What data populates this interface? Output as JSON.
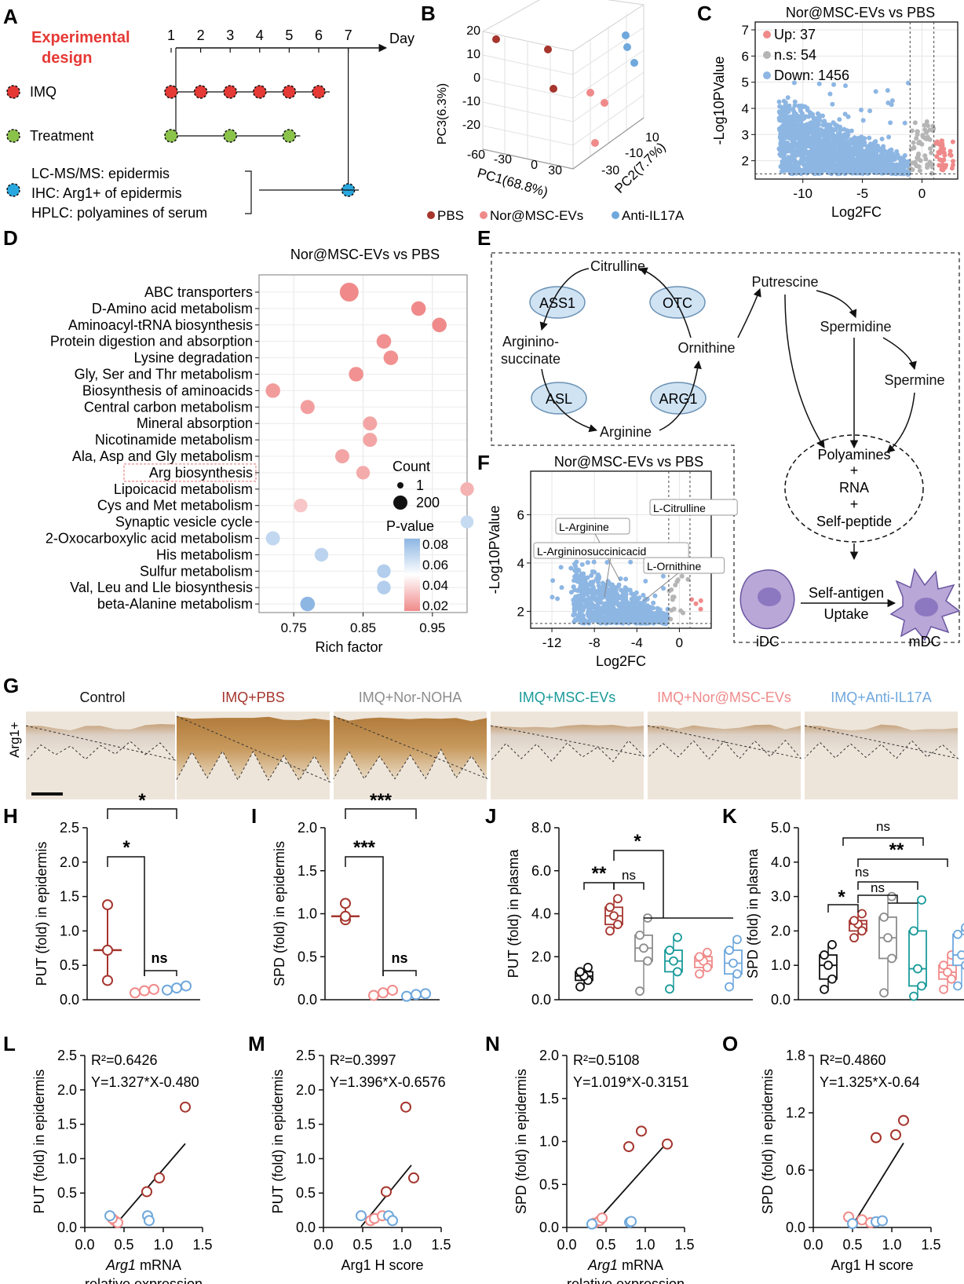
{
  "figure": {
    "panel_letters": [
      "A",
      "B",
      "C",
      "D",
      "E",
      "F",
      "G",
      "H",
      "I",
      "J",
      "K",
      "L",
      "M",
      "N",
      "O"
    ]
  },
  "panel_a": {
    "title_line1": "Experimental",
    "title_line2": "design",
    "day_label": "Day",
    "days": [
      "1",
      "2",
      "3",
      "4",
      "5",
      "6",
      "7"
    ],
    "rows": [
      {
        "label": "IMQ",
        "color": "#e53935",
        "days": [
          1,
          2,
          3,
          4,
          5,
          6
        ]
      },
      {
        "label": "Treatment",
        "color": "#8bc34a",
        "days": [
          1,
          3,
          5
        ]
      }
    ],
    "analysis_lines": [
      "LC-MS/MS: epidermis",
      "IHC: Arg1+ of epidermis",
      "HPLC: polyamines of serum"
    ],
    "analysis_color": "#29a8e0",
    "analysis_day": 7
  },
  "panel_b": {
    "xlabel": "PC1(68.8%)",
    "ylabel": "PC3(6.3%)",
    "zlabel": "PC2(7.7%)",
    "x_ticks": [
      "-60",
      "-30",
      "0",
      "30"
    ],
    "z_ticks": [
      "10",
      "-10",
      "-30"
    ],
    "y_ticks": [
      "20",
      "10",
      "0",
      "-10",
      "-20"
    ],
    "legend": [
      {
        "name": "PBS",
        "color": "#a5352d"
      },
      {
        "name": "Nor@MSC-EVs",
        "color": "#f08a8a"
      },
      {
        "name": "Anti-IL17A",
        "color": "#6fa8dc"
      }
    ]
  },
  "chart_data": [
    {
      "id": "C",
      "type": "scatter",
      "title": "Nor@MSC-EVs vs PBS",
      "xlabel": "Log2FC",
      "ylabel": "-Log10PValue",
      "xlim": [
        -14,
        3
      ],
      "ylim": [
        1.3,
        7.3
      ],
      "x_ticks": [
        -10,
        -5,
        0
      ],
      "y_ticks": [
        2,
        3,
        4,
        5,
        6,
        7
      ],
      "legend": [
        {
          "name": "Up: 37",
          "color": "#f08a8a"
        },
        {
          "name": "n.s: 54",
          "color": "#b5b5b5"
        },
        {
          "name": "Down: 1456",
          "color": "#8db6e3"
        }
      ]
    },
    {
      "id": "D",
      "type": "scatter",
      "title": "Nor@MSC-EVs vs PBS",
      "xlabel": "Rich factor",
      "x_ticks": [
        "0.75",
        "0.85",
        "0.95"
      ],
      "xlim": [
        0.7,
        1.0
      ],
      "categories": [
        "ABC transporters",
        "D-Amino acid metabolism",
        "Aminoacyl-tRNA biosynthesis",
        "Protein digestion and absorption",
        "Lysine degradation",
        "Gly, Ser and Thr metabolism",
        "Biosynthesis of aminoacids",
        "Central carbon metabolism",
        "Mineral absorption",
        "Nicotinamide metabolism",
        "Ala, Asp and Gly metabolism",
        "Arg biosynthesis",
        "Lipoicacid metabolism",
        "Cys and Met metabolism",
        "Synaptic vesicle cycle",
        "2-Oxocarboxylic acid metabolism",
        "His metabolism",
        "Sulfur metabolism",
        "Val, Leu and Lle biosynthesis",
        "beta-Alanine metabolism"
      ],
      "rich_factor": [
        0.83,
        0.93,
        0.96,
        0.88,
        0.89,
        0.84,
        0.72,
        0.77,
        0.86,
        0.86,
        0.82,
        0.85,
        1.0,
        0.76,
        1.0,
        0.72,
        0.79,
        0.88,
        0.88,
        0.77
      ],
      "p_value": [
        0.02,
        0.02,
        0.02,
        0.022,
        0.022,
        0.022,
        0.025,
        0.026,
        0.028,
        0.028,
        0.028,
        0.03,
        0.032,
        0.038,
        0.065,
        0.066,
        0.068,
        0.07,
        0.07,
        0.08
      ],
      "count": [
        200,
        60,
        60,
        60,
        60,
        60,
        60,
        50,
        50,
        50,
        50,
        40,
        40,
        40,
        30,
        50,
        40,
        40,
        40,
        60
      ],
      "highlighted_category": "Arg biosynthesis",
      "legend_count_title": "Count",
      "legend_count": [
        "1",
        "200"
      ],
      "legend_p_title": "P-value",
      "legend_p_ticks": [
        "0.08",
        "0.06",
        "0.04",
        "0.02"
      ]
    },
    {
      "id": "F",
      "type": "scatter",
      "title": "Nor@MSC-EVs vs PBS",
      "xlabel": "Log2FC",
      "ylabel": "-Log10PValue",
      "xlim": [
        -14,
        3
      ],
      "ylim": [
        1.3,
        7.8
      ],
      "x_ticks": [
        -12,
        -8,
        -4,
        0
      ],
      "y_ticks": [
        2,
        4,
        6
      ],
      "annotations": [
        "L-Citrulline",
        "L-Arginine",
        "L-Argininosuccinicacid",
        "L-Ornithine"
      ]
    },
    {
      "id": "H",
      "type": "scatter",
      "ylabel": "PUT (fold) in epidermis",
      "ylim": [
        0,
        2.5
      ],
      "y_ticks": [
        "0.0",
        "0.5",
        "1.0",
        "1.5",
        "2.0",
        "2.5"
      ],
      "groups": [
        {
          "color": "#a5352d",
          "values": [
            1.38,
            0.72,
            0.28
          ],
          "median": 0.72
        },
        {
          "color": "#f08a8a",
          "values": [
            0.1,
            0.13,
            0.15
          ],
          "median": 0.13
        },
        {
          "color": "#6fa8dc",
          "values": [
            0.14,
            0.17,
            0.2
          ],
          "median": 0.17
        }
      ],
      "significance": [
        "*",
        "*",
        "ns"
      ]
    },
    {
      "id": "I",
      "type": "scatter",
      "ylabel": "SPD (fold) in epidermis",
      "ylim": [
        0,
        2.0
      ],
      "y_ticks": [
        "0.0",
        "0.5",
        "1.0",
        "1.5",
        "2.0"
      ],
      "groups": [
        {
          "color": "#a5352d",
          "values": [
            1.12,
            0.93,
            0.97
          ],
          "median": 0.97
        },
        {
          "color": "#f08a8a",
          "values": [
            0.05,
            0.08,
            0.11
          ],
          "median": 0.08
        },
        {
          "color": "#6fa8dc",
          "values": [
            0.04,
            0.06,
            0.07
          ],
          "median": 0.06
        }
      ],
      "significance": [
        "***",
        "***",
        "ns"
      ]
    },
    {
      "id": "J",
      "type": "box",
      "ylabel": "PUT (fold) in plasma",
      "ylim": [
        0,
        8.0
      ],
      "y_ticks": [
        "0.0",
        "2.0",
        "4.0",
        "6.0",
        "8.0"
      ],
      "groups": [
        {
          "color": "#111111",
          "values": [
            0.6,
            0.9,
            1.1,
            1.3,
            1.5
          ]
        },
        {
          "color": "#a5352d",
          "values": [
            3.2,
            3.5,
            3.9,
            4.3,
            4.7
          ]
        },
        {
          "color": "#8c8c8c",
          "values": [
            0.4,
            1.8,
            2.4,
            3.0,
            3.8
          ]
        },
        {
          "color": "#1a9a9a",
          "values": [
            0.5,
            1.3,
            1.8,
            2.3,
            2.9
          ]
        },
        {
          "color": "#f08a8a",
          "values": [
            1.2,
            1.5,
            1.8,
            2.0,
            2.2
          ]
        },
        {
          "color": "#6fa8dc",
          "values": [
            0.6,
            1.2,
            1.7,
            2.3,
            2.8
          ]
        }
      ],
      "significance": [
        "**",
        "ns",
        "*"
      ]
    },
    {
      "id": "K",
      "type": "box",
      "ylabel": "SPD (fold) in plasma",
      "ylim": [
        0,
        5.0
      ],
      "y_ticks": [
        "0.0",
        "1.0",
        "2.0",
        "3.0",
        "4.0",
        "5.0"
      ],
      "groups": [
        {
          "color": "#111111",
          "values": [
            0.3,
            0.6,
            1.0,
            1.3,
            1.6
          ]
        },
        {
          "color": "#a5352d",
          "values": [
            1.8,
            2.0,
            2.2,
            2.3,
            2.5
          ]
        },
        {
          "color": "#8c8c8c",
          "values": [
            0.2,
            1.2,
            1.8,
            2.4,
            3.0
          ]
        },
        {
          "color": "#1a9a9a",
          "values": [
            0.1,
            0.4,
            0.9,
            2.0,
            2.9
          ]
        },
        {
          "color": "#f08a8a",
          "values": [
            0.3,
            0.6,
            0.8,
            1.0,
            1.3
          ]
        },
        {
          "color": "#6fa8dc",
          "values": [
            0.4,
            1.0,
            1.3,
            1.9,
            2.1
          ]
        }
      ],
      "significance": [
        "*",
        "ns",
        "ns",
        "**",
        "ns"
      ]
    },
    {
      "id": "L",
      "type": "scatter",
      "ylabel": "PUT (fold) in epidermis",
      "xlabel_line1": "Arg1",
      "xlabel_line1_rest": " mRNA",
      "xlabel_line2": "relative expression",
      "xlim": [
        0,
        1.5
      ],
      "ylim": [
        0,
        2.5
      ],
      "x_ticks": [
        "0.0",
        "0.5",
        "1.0",
        "1.5"
      ],
      "y_ticks": [
        "0.0",
        "0.5",
        "1.0",
        "1.5",
        "2.0",
        "2.5"
      ],
      "r2": "R²=0.6426",
      "equation": "Y=1.327*X-0.480",
      "fit": {
        "slope": 1.327,
        "intercept": -0.48,
        "x_range": [
          0.36,
          1.28
        ]
      },
      "points": [
        {
          "x": 0.79,
          "y": 0.52,
          "g": 0
        },
        {
          "x": 0.95,
          "y": 0.72,
          "g": 0
        },
        {
          "x": 1.28,
          "y": 1.75,
          "g": 0
        },
        {
          "x": 0.38,
          "y": 0.1,
          "g": 1
        },
        {
          "x": 0.42,
          "y": 0.07,
          "g": 1
        },
        {
          "x": 0.35,
          "y": 0.13,
          "g": 1
        },
        {
          "x": 0.32,
          "y": 0.17,
          "g": 2
        },
        {
          "x": 0.8,
          "y": 0.17,
          "g": 2
        },
        {
          "x": 0.82,
          "y": 0.1,
          "g": 2
        }
      ]
    },
    {
      "id": "M",
      "type": "scatter",
      "ylabel": "PUT (fold) in epidermis",
      "xlabel": "Arg1 H score",
      "xlim": [
        0,
        1.5
      ],
      "ylim": [
        0,
        2.5
      ],
      "x_ticks": [
        "0.0",
        "0.5",
        "1.0",
        "1.5"
      ],
      "y_ticks": [
        "0.0",
        "0.5",
        "1.0",
        "1.5",
        "2.0",
        "2.5"
      ],
      "r2": "R²=0.3997",
      "equation": "Y=1.396*X-0.6576",
      "fit": {
        "slope": 1.396,
        "intercept": -0.6576,
        "x_range": [
          0.48,
          1.12
        ]
      },
      "points": [
        {
          "x": 0.8,
          "y": 0.52,
          "g": 0
        },
        {
          "x": 1.15,
          "y": 0.72,
          "g": 0
        },
        {
          "x": 1.05,
          "y": 1.75,
          "g": 0
        },
        {
          "x": 0.6,
          "y": 0.1,
          "g": 1
        },
        {
          "x": 0.65,
          "y": 0.13,
          "g": 1
        },
        {
          "x": 0.75,
          "y": 0.17,
          "g": 1
        },
        {
          "x": 0.48,
          "y": 0.17,
          "g": 2
        },
        {
          "x": 0.83,
          "y": 0.17,
          "g": 2
        },
        {
          "x": 0.88,
          "y": 0.1,
          "g": 2
        }
      ]
    },
    {
      "id": "N",
      "type": "scatter",
      "ylabel": "SPD (fold) in epidermis",
      "xlabel_line1": "Arg1",
      "xlabel_line1_rest": " mRNA",
      "xlabel_line2": "relative expression",
      "xlim": [
        0,
        1.5
      ],
      "ylim": [
        0,
        2.0
      ],
      "x_ticks": [
        "0.0",
        "0.5",
        "1.0",
        "1.5"
      ],
      "y_ticks": [
        "0.0",
        "0.5",
        "1.0",
        "1.5",
        "2.0"
      ],
      "r2": "R²=0.5108",
      "equation": "Y=1.019*X-0.3151",
      "fit": {
        "slope": 1.019,
        "intercept": -0.3151,
        "x_range": [
          0.31,
          1.28
        ]
      },
      "points": [
        {
          "x": 0.79,
          "y": 0.94,
          "g": 0
        },
        {
          "x": 0.95,
          "y": 1.12,
          "g": 0
        },
        {
          "x": 1.28,
          "y": 0.97,
          "g": 0
        },
        {
          "x": 0.35,
          "y": 0.05,
          "g": 1
        },
        {
          "x": 0.42,
          "y": 0.08,
          "g": 1
        },
        {
          "x": 0.45,
          "y": 0.11,
          "g": 1
        },
        {
          "x": 0.32,
          "y": 0.04,
          "g": 2
        },
        {
          "x": 0.8,
          "y": 0.06,
          "g": 2
        },
        {
          "x": 0.82,
          "y": 0.07,
          "g": 2
        }
      ]
    },
    {
      "id": "O",
      "type": "scatter",
      "ylabel": "SPD (fold) in epidermis",
      "xlabel": "Arg1 H score",
      "xlim": [
        0,
        1.5
      ],
      "ylim": [
        0,
        1.8
      ],
      "x_ticks": [
        "0.0",
        "0.5",
        "1.0",
        "1.5"
      ],
      "y_ticks": [
        "0.0",
        "0.6",
        "1.2",
        "1.8"
      ],
      "r2": "R²=0.4860",
      "equation": "Y=1.325*X-0.64",
      "fit": {
        "slope": 1.325,
        "intercept": -0.64,
        "x_range": [
          0.48,
          1.15
        ]
      },
      "points": [
        {
          "x": 0.8,
          "y": 0.94,
          "g": 0
        },
        {
          "x": 1.05,
          "y": 0.97,
          "g": 0
        },
        {
          "x": 1.15,
          "y": 1.12,
          "g": 0
        },
        {
          "x": 0.45,
          "y": 0.11,
          "g": 1
        },
        {
          "x": 0.62,
          "y": 0.08,
          "g": 1
        },
        {
          "x": 0.73,
          "y": 0.05,
          "g": 1
        },
        {
          "x": 0.5,
          "y": 0.04,
          "g": 2
        },
        {
          "x": 0.8,
          "y": 0.06,
          "g": 2
        },
        {
          "x": 0.88,
          "y": 0.07,
          "g": 2
        }
      ]
    }
  ],
  "panel_e": {
    "enzymes": [
      "ASS1",
      "OTC",
      "ASL",
      "ARG1"
    ],
    "metabolites": [
      "Citrulline",
      "Arginino-",
      "succinate",
      "Ornithine",
      "Arginine",
      "Putrescine",
      "Spermidine",
      "Spermine"
    ],
    "complex": [
      "Polyamines",
      "+",
      "RNA",
      "+",
      "Self-peptide"
    ],
    "cells": [
      "iDC",
      "mDC"
    ],
    "arrow_label1": "Self-antigen",
    "arrow_label2": "Uptake"
  },
  "panel_g": {
    "row_label": "Arg1+",
    "groups": [
      {
        "label": "Control",
        "color": "#111111"
      },
      {
        "label": "IMQ+PBS",
        "color": "#a5352d"
      },
      {
        "label": "IMQ+Nor-NOHA",
        "color": "#8c8c8c"
      },
      {
        "label": "IMQ+MSC-EVs",
        "color": "#1a9a9a"
      },
      {
        "label": "IMQ+Nor@MSC-EVs",
        "color": "#f08a8a"
      },
      {
        "label": "IMQ+Anti-IL17A",
        "color": "#6fa8dc"
      }
    ]
  }
}
